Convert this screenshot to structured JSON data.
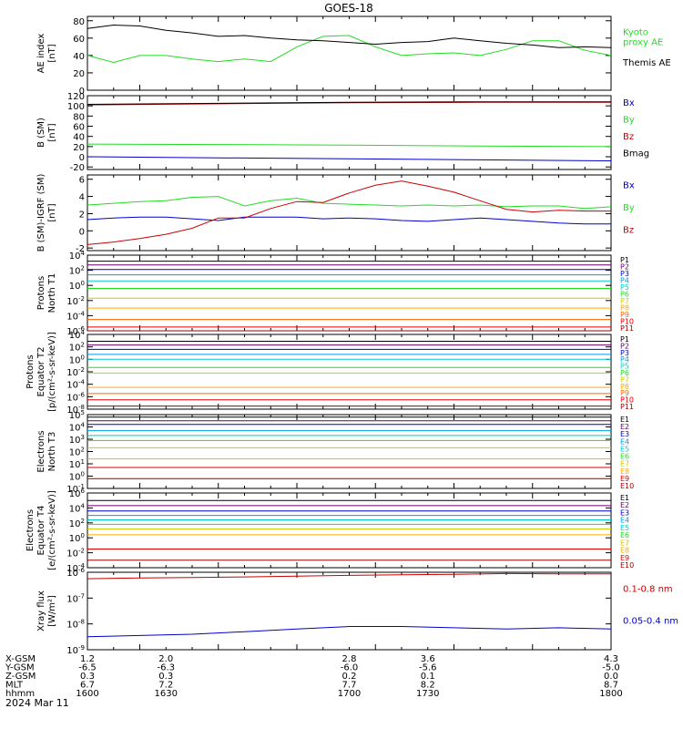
{
  "figure": {
    "title": "GOES-18",
    "date_label": "2024 Mar 11",
    "time_ticks": [
      "1600",
      "1630",
      "1700",
      "1730",
      "1800"
    ],
    "footer_rows": [
      {
        "label": "X-GSM",
        "values": [
          "1.2",
          "2.0",
          "2.8",
          "3.6",
          "4.3"
        ]
      },
      {
        "label": "Y-GSM",
        "values": [
          "-6.5",
          "-6.3",
          "-6.0",
          "-5.6",
          "-5.0"
        ]
      },
      {
        "label": "Z-GSM",
        "values": [
          "0.3",
          "0.3",
          "0.2",
          "0.1",
          "0.0"
        ]
      },
      {
        "label": "MLT",
        "values": [
          "6.7",
          "7.2",
          "7.7",
          "8.2",
          "8.7"
        ]
      },
      {
        "label": "hhmm",
        "values": [
          "1600",
          "1630",
          "1700",
          "1730",
          "1800"
        ]
      }
    ]
  },
  "chart_data": [
    {
      "type": "line",
      "id": "ae",
      "ylabel": [
        "AE index",
        "[nT]"
      ],
      "ylim": [
        0,
        85
      ],
      "scale": "linear",
      "yticks": [
        0,
        20,
        40,
        60,
        80
      ],
      "ytick_labels": [
        "0",
        "20",
        "40",
        "60",
        "80"
      ],
      "x": [
        1600,
        1610,
        1620,
        1630,
        1640,
        1650,
        1660,
        1670,
        1680,
        1690,
        1700,
        1710,
        1720,
        1730,
        1740,
        1750,
        1760,
        1770,
        1780,
        1790,
        1800
      ],
      "series": [
        {
          "name": "Kyoto proxy AE",
          "legend": [
            "Kyoto",
            "proxy AE"
          ],
          "color": "#22dd22",
          "values": [
            40,
            32,
            40,
            40,
            36,
            33,
            36,
            33,
            50,
            62,
            63,
            50,
            40,
            42,
            43,
            40,
            47,
            57,
            57,
            46,
            40
          ]
        },
        {
          "name": "Themis AE",
          "legend": [
            "Themis AE"
          ],
          "color": "#000000",
          "values": [
            71,
            75,
            74,
            69,
            66,
            62,
            63,
            60,
            58,
            57,
            55,
            53,
            55,
            56,
            60,
            57,
            54,
            52,
            49,
            50,
            49
          ]
        }
      ]
    },
    {
      "type": "line",
      "id": "bsm",
      "ylabel": [
        "B (SM)",
        "[nT]"
      ],
      "ylim": [
        -25,
        120
      ],
      "scale": "linear",
      "yticks": [
        -20,
        0,
        20,
        40,
        60,
        80,
        100,
        120
      ],
      "ytick_labels": [
        "-20",
        "0",
        "20",
        "40",
        "60",
        "80",
        "100",
        "120"
      ],
      "x": [
        1600,
        1650,
        1700,
        1750,
        1800
      ],
      "series": [
        {
          "name": "Bx",
          "color": "#0000cc",
          "values": [
            0,
            -2,
            -4,
            -6,
            -8
          ]
        },
        {
          "name": "By",
          "color": "#22dd22",
          "values": [
            25,
            24,
            23,
            21,
            20
          ]
        },
        {
          "name": "Bz",
          "color": "#cc0000",
          "values": [
            102,
            104,
            106,
            107,
            107
          ]
        },
        {
          "name": "Bmag",
          "color": "#000000",
          "values": [
            103,
            105,
            107,
            108,
            108
          ]
        }
      ]
    },
    {
      "type": "line",
      "id": "bigrf",
      "ylabel": [
        "B (SM)-IGRF (SM)",
        "[nT]"
      ],
      "ylim": [
        -2.3,
        6.5
      ],
      "scale": "linear",
      "yticks": [
        -2,
        0,
        2,
        4,
        6
      ],
      "ytick_labels": [
        "-2",
        "0",
        "2",
        "4",
        "6"
      ],
      "x": [
        1600,
        1610,
        1620,
        1630,
        1640,
        1650,
        1660,
        1670,
        1680,
        1690,
        1700,
        1710,
        1720,
        1730,
        1740,
        1750,
        1760,
        1770,
        1780,
        1790,
        1800
      ],
      "series": [
        {
          "name": "Bx",
          "color": "#0000cc",
          "values": [
            1.3,
            1.5,
            1.6,
            1.6,
            1.4,
            1.2,
            1.6,
            1.6,
            1.6,
            1.4,
            1.5,
            1.4,
            1.2,
            1.1,
            1.3,
            1.5,
            1.3,
            1.1,
            0.9,
            0.8,
            0.8
          ]
        },
        {
          "name": "By",
          "color": "#22dd22",
          "values": [
            3.0,
            3.2,
            3.4,
            3.5,
            3.9,
            4.0,
            2.9,
            3.5,
            3.8,
            3.2,
            3.1,
            3.0,
            2.9,
            3.0,
            2.9,
            3.0,
            2.8,
            2.9,
            2.9,
            2.6,
            2.8
          ]
        },
        {
          "name": "Bz",
          "color": "#cc0000",
          "values": [
            -1.6,
            -1.3,
            -0.9,
            -0.4,
            0.3,
            1.5,
            1.5,
            2.6,
            3.4,
            3.3,
            4.4,
            5.3,
            5.8,
            5.2,
            4.5,
            3.5,
            2.5,
            2.2,
            2.4,
            2.3,
            2.3
          ]
        }
      ]
    },
    {
      "type": "line",
      "id": "prot_t1",
      "ylabel": [
        "Protons",
        "North T1"
      ],
      "ylim": [
        -6,
        4
      ],
      "scale": "log",
      "yticks": [
        4,
        2,
        0,
        -2,
        -4,
        -6
      ],
      "ytick_labels": [
        "10^4",
        "10^2",
        "10^0",
        "10^-2",
        "10^-4",
        "10^-6"
      ],
      "x": [
        1600,
        1800
      ],
      "series": [
        {
          "name": "P1",
          "color": "#000000",
          "values": [
            3.2,
            3.2
          ]
        },
        {
          "name": "P2",
          "color": "#660066",
          "values": [
            2.7,
            2.7
          ]
        },
        {
          "name": "P3",
          "color": "#0000cc",
          "values": [
            2.1,
            2.1
          ]
        },
        {
          "name": "P4",
          "color": "#0099ee",
          "values": [
            1.4,
            1.4
          ]
        },
        {
          "name": "P5",
          "color": "#00cccc",
          "values": [
            0.6,
            0.6
          ]
        },
        {
          "name": "P6",
          "color": "#22dd22",
          "values": [
            -0.4,
            -0.4
          ]
        },
        {
          "name": "P7",
          "color": "#cccc00",
          "values": [
            -1.7,
            -1.7
          ]
        },
        {
          "name": "P8",
          "color": "#ffaa00",
          "values": [
            -3.0,
            -3.0
          ]
        },
        {
          "name": "P9",
          "color": "#ff6600",
          "values": [
            -4.5,
            -4.5
          ]
        },
        {
          "name": "P10",
          "color": "#dd0000",
          "values": [
            -5.5,
            -5.5
          ]
        },
        {
          "name": "P11",
          "color": "#990000",
          "values": [
            -6.0,
            -6.0
          ]
        }
      ]
    },
    {
      "type": "line",
      "id": "prot_t2",
      "ylabel": [
        "Protons",
        "Equator T2",
        "[p/(cm²-s-sr-keV)]"
      ],
      "ylim": [
        -8,
        4
      ],
      "scale": "log",
      "yticks": [
        4,
        2,
        0,
        -2,
        -4,
        -6,
        -8
      ],
      "ytick_labels": [
        "10^4",
        "10^2",
        "10^0",
        "10^-2",
        "10^-4",
        "10^-6",
        "10^-8"
      ],
      "x": [
        1600,
        1800
      ],
      "series": [
        {
          "name": "P1",
          "color": "#000000",
          "values": [
            2.9,
            2.9
          ]
        },
        {
          "name": "P2",
          "color": "#660066",
          "values": [
            2.3,
            2.3
          ]
        },
        {
          "name": "P3",
          "color": "#0000cc",
          "values": [
            1.6,
            1.6
          ]
        },
        {
          "name": "P4",
          "color": "#0099ee",
          "values": [
            0.8,
            0.8
          ]
        },
        {
          "name": "P5",
          "color": "#00cccc",
          "values": [
            0.0,
            0.0
          ]
        },
        {
          "name": "P6",
          "color": "#22dd22",
          "values": [
            -1.3,
            -1.3
          ]
        },
        {
          "name": "P7",
          "color": "#cccc00",
          "values": [
            -2.2,
            -2.2
          ]
        },
        {
          "name": "P8",
          "color": "#ffaa00",
          "values": [
            -4.5,
            -4.5
          ]
        },
        {
          "name": "P9",
          "color": "#ff6600",
          "values": [
            -5.5,
            -5.5
          ]
        },
        {
          "name": "P10",
          "color": "#dd0000",
          "values": [
            -6.5,
            -6.5
          ]
        },
        {
          "name": "P11",
          "color": "#990000",
          "values": [
            -7.5,
            -7.5
          ]
        }
      ]
    },
    {
      "type": "line",
      "id": "elec_t3",
      "ylabel": [
        "Electrons",
        "North T3"
      ],
      "ylim": [
        -1,
        5
      ],
      "scale": "log",
      "yticks": [
        5,
        4,
        3,
        2,
        1,
        0,
        -1
      ],
      "ytick_labels": [
        "10^5",
        "10^4",
        "10^3",
        "10^2",
        "10^1",
        "10^0",
        "10^-1"
      ],
      "x": [
        1600,
        1800
      ],
      "series": [
        {
          "name": "E1",
          "color": "#000000",
          "values": [
            4.8,
            4.8
          ]
        },
        {
          "name": "E2",
          "color": "#660066",
          "values": [
            4.5,
            4.5
          ]
        },
        {
          "name": "E3",
          "color": "#0000cc",
          "values": [
            4.2,
            4.2
          ]
        },
        {
          "name": "E4",
          "color": "#0099ee",
          "values": [
            3.7,
            3.7
          ]
        },
        {
          "name": "E5",
          "color": "#00cccc",
          "values": [
            3.3,
            3.3
          ]
        },
        {
          "name": "E6",
          "color": "#22dd22",
          "values": [
            2.9,
            2.9
          ]
        },
        {
          "name": "E7",
          "color": "#cccc00",
          "values": [
            2.3,
            2.3
          ]
        },
        {
          "name": "E8",
          "color": "#ffaa00",
          "values": [
            1.4,
            1.4
          ]
        },
        {
          "name": "E9",
          "color": "#dd0000",
          "values": [
            0.7,
            0.7
          ]
        },
        {
          "name": "E10",
          "color": "#990000",
          "values": [
            -0.2,
            -0.2
          ]
        }
      ]
    },
    {
      "type": "line",
      "id": "elec_t4",
      "ylabel": [
        "Electrons",
        "Equator T4",
        "[e/(cm²-s-sr-keV)]"
      ],
      "ylim": [
        -4,
        6
      ],
      "scale": "log",
      "yticks": [
        6,
        4,
        2,
        0,
        -2,
        -4
      ],
      "ytick_labels": [
        "10^6",
        "10^4",
        "10^2",
        "10^0",
        "10^-2",
        "10^-4"
      ],
      "x": [
        1600,
        1800
      ],
      "series": [
        {
          "name": "E1",
          "color": "#000000",
          "values": [
            5.0,
            5.0
          ]
        },
        {
          "name": "E2",
          "color": "#660066",
          "values": [
            4.3,
            4.3
          ]
        },
        {
          "name": "E3",
          "color": "#0000cc",
          "values": [
            3.6,
            3.6
          ]
        },
        {
          "name": "E4",
          "color": "#0099ee",
          "values": [
            3.0,
            3.0
          ]
        },
        {
          "name": "E5",
          "color": "#00cccc",
          "values": [
            2.4,
            2.4
          ]
        },
        {
          "name": "E6",
          "color": "#22dd22",
          "values": [
            1.8,
            1.8
          ]
        },
        {
          "name": "E7",
          "color": "#cccc00",
          "values": [
            1.2,
            1.2
          ]
        },
        {
          "name": "E8",
          "color": "#ffaa00",
          "values": [
            0.4,
            0.4
          ]
        },
        {
          "name": "E9",
          "color": "#dd0000",
          "values": [
            -1.5,
            -1.5
          ]
        },
        {
          "name": "E10",
          "color": "#990000",
          "values": [
            -3.0,
            -3.0
          ]
        }
      ]
    },
    {
      "type": "line",
      "id": "xray",
      "ylabel": [
        "Xray flux",
        "[W/m²]"
      ],
      "ylim": [
        -9,
        -6
      ],
      "scale": "log",
      "yticks": [
        -6,
        -7,
        -8,
        -9
      ],
      "ytick_labels": [
        "10^-6",
        "10^-7",
        "10^-8",
        "10^-9"
      ],
      "x": [
        1600,
        1620,
        1640,
        1660,
        1680,
        1700,
        1720,
        1740,
        1760,
        1780,
        1800
      ],
      "series": [
        {
          "name": "0.1-0.8 nm",
          "color": "#cc0000",
          "values": [
            -6.25,
            -6.22,
            -6.2,
            -6.18,
            -6.15,
            -6.12,
            -6.1,
            -6.08,
            -6.05,
            -6.06,
            -6.06
          ]
        },
        {
          "name": "0.05-0.4 nm",
          "color": "#0000cc",
          "values": [
            -8.5,
            -8.45,
            -8.4,
            -8.3,
            -8.2,
            -8.1,
            -8.1,
            -8.15,
            -8.2,
            -8.15,
            -8.2
          ]
        }
      ]
    }
  ]
}
